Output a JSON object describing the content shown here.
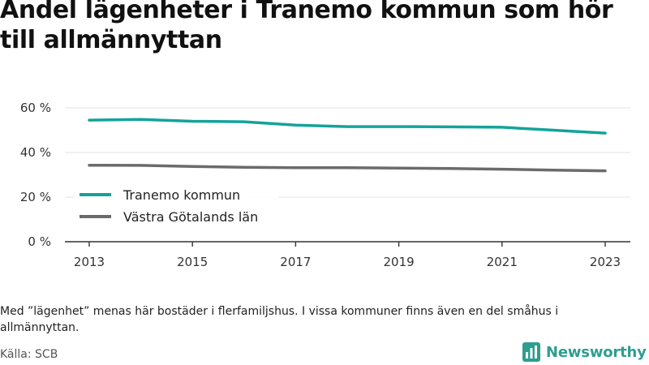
{
  "title": "Andel lägenheter i Tranemo kommun som hör till allmännyttan",
  "note": "Med ”lägenhet” menas här bostäder i flerfamiljshus. I vissa kommuner finns även en del småhus i allmännyttan.",
  "source": "Källa: SCB",
  "brand": {
    "name": "Newsworthy",
    "color": "#2e9e8f",
    "logo_icon": "bar-chart-logo-icon"
  },
  "chart_data": {
    "type": "line",
    "x": [
      2013,
      2014,
      2015,
      2016,
      2017,
      2018,
      2019,
      2020,
      2021,
      2022,
      2023
    ],
    "x_ticks": [
      "2013",
      "2015",
      "2017",
      "2019",
      "2021",
      "2023"
    ],
    "y_ticks": [
      "0 %",
      "20 %",
      "40 %",
      "60 %"
    ],
    "ylim": [
      0,
      65
    ],
    "grid": true,
    "legend_position": "left",
    "series": [
      {
        "name": "Tranemo kommun",
        "color": "#13a39a",
        "values": [
          54.5,
          54.8,
          54.0,
          53.8,
          52.3,
          51.6,
          51.6,
          51.5,
          51.3,
          50.0,
          48.7
        ]
      },
      {
        "name": "Västra Götalands län",
        "color": "#6b6b6b",
        "values": [
          34.3,
          34.2,
          33.7,
          33.4,
          33.2,
          33.2,
          33.0,
          32.8,
          32.5,
          32.1,
          31.8
        ]
      }
    ]
  }
}
